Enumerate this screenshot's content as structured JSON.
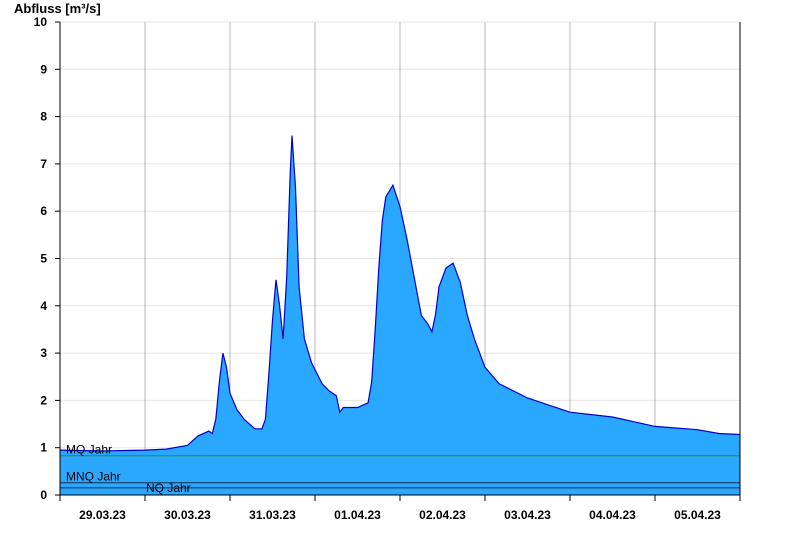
{
  "chart_data": {
    "type": "area",
    "ylabel": "Abfluss [m³/s]",
    "ylim": [
      0,
      10
    ],
    "yticks": [
      0,
      1,
      2,
      3,
      4,
      5,
      6,
      7,
      8,
      9,
      10
    ],
    "xlim": [
      "2023-03-29T00:00",
      "2023-04-06T00:00"
    ],
    "xtick_labels": [
      "29.03.23",
      "30.03.23",
      "31.03.23",
      "01.04.23",
      "02.04.23",
      "03.04.23",
      "04.04.23",
      "05.04.23"
    ],
    "grid": true,
    "colors": {
      "fill": "#2aa8ff",
      "line": "#0000cc",
      "mq_line": "#2e8b2e",
      "mnq_line": "#1a2a4a",
      "nq_line": "#1a2a4a",
      "grid": "#e6e6e6"
    },
    "reference_lines": [
      {
        "label": "MQ Jahr",
        "value": 0.83
      },
      {
        "label": "MNQ Jahr",
        "value": 0.26
      },
      {
        "label": "NQ Jahr",
        "value": 0.15
      }
    ],
    "series": [
      {
        "points": [
          [
            "2023-03-29T00:00",
            0.95
          ],
          [
            "2023-03-29T12:00",
            0.93
          ],
          [
            "2023-03-30T00:00",
            0.95
          ],
          [
            "2023-03-30T06:00",
            0.97
          ],
          [
            "2023-03-30T12:00",
            1.05
          ],
          [
            "2023-03-30T15:00",
            1.25
          ],
          [
            "2023-03-30T18:00",
            1.35
          ],
          [
            "2023-03-30T19:00",
            1.3
          ],
          [
            "2023-03-30T20:00",
            1.6
          ],
          [
            "2023-03-30T21:00",
            2.4
          ],
          [
            "2023-03-30T22:00",
            3.0
          ],
          [
            "2023-03-30T23:00",
            2.7
          ],
          [
            "2023-03-31T00:00",
            2.15
          ],
          [
            "2023-03-31T02:00",
            1.8
          ],
          [
            "2023-03-31T04:00",
            1.6
          ],
          [
            "2023-03-31T07:00",
            1.4
          ],
          [
            "2023-03-31T09:00",
            1.4
          ],
          [
            "2023-03-31T10:00",
            1.6
          ],
          [
            "2023-03-31T11:00",
            2.6
          ],
          [
            "2023-03-31T12:00",
            3.7
          ],
          [
            "2023-03-31T13:00",
            4.55
          ],
          [
            "2023-03-31T14:00",
            4.0
          ],
          [
            "2023-03-31T15:00",
            3.3
          ],
          [
            "2023-03-31T16:00",
            4.6
          ],
          [
            "2023-03-31T17:00",
            6.8
          ],
          [
            "2023-03-31T17:30",
            7.6
          ],
          [
            "2023-03-31T18:30",
            6.5
          ],
          [
            "2023-03-31T19:30",
            4.4
          ],
          [
            "2023-03-31T21:00",
            3.3
          ],
          [
            "2023-03-31T23:00",
            2.8
          ],
          [
            "2023-04-01T02:00",
            2.35
          ],
          [
            "2023-04-01T04:00",
            2.2
          ],
          [
            "2023-04-01T06:00",
            2.1
          ],
          [
            "2023-04-01T07:00",
            1.75
          ],
          [
            "2023-04-01T08:00",
            1.85
          ],
          [
            "2023-04-01T12:00",
            1.85
          ],
          [
            "2023-04-01T15:00",
            1.95
          ],
          [
            "2023-04-01T16:00",
            2.4
          ],
          [
            "2023-04-01T17:00",
            3.5
          ],
          [
            "2023-04-01T18:00",
            4.8
          ],
          [
            "2023-04-01T19:00",
            5.8
          ],
          [
            "2023-04-01T20:00",
            6.3
          ],
          [
            "2023-04-01T22:00",
            6.55
          ],
          [
            "2023-04-02T00:00",
            6.1
          ],
          [
            "2023-04-02T02:00",
            5.4
          ],
          [
            "2023-04-02T04:00",
            4.6
          ],
          [
            "2023-04-02T06:00",
            3.8
          ],
          [
            "2023-04-02T08:00",
            3.6
          ],
          [
            "2023-04-02T09:00",
            3.45
          ],
          [
            "2023-04-02T10:00",
            3.8
          ],
          [
            "2023-04-02T11:00",
            4.4
          ],
          [
            "2023-04-02T13:00",
            4.8
          ],
          [
            "2023-04-02T15:00",
            4.9
          ],
          [
            "2023-04-02T17:00",
            4.5
          ],
          [
            "2023-04-02T19:00",
            3.8
          ],
          [
            "2023-04-02T21:00",
            3.3
          ],
          [
            "2023-04-03T00:00",
            2.7
          ],
          [
            "2023-04-03T04:00",
            2.35
          ],
          [
            "2023-04-03T12:00",
            2.05
          ],
          [
            "2023-04-04T00:00",
            1.75
          ],
          [
            "2023-04-04T12:00",
            1.65
          ],
          [
            "2023-04-05T00:00",
            1.45
          ],
          [
            "2023-04-05T12:00",
            1.38
          ],
          [
            "2023-04-05T18:00",
            1.3
          ],
          [
            "2023-04-06T00:00",
            1.28
          ]
        ]
      }
    ]
  }
}
